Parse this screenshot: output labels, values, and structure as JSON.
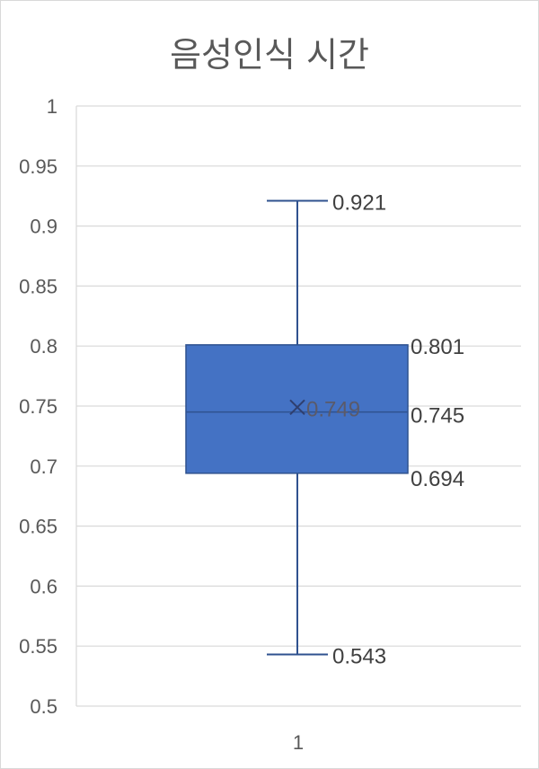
{
  "chart_data": {
    "type": "box",
    "title": "음성인식 시간",
    "categories": [
      "1"
    ],
    "box": {
      "min": 0.543,
      "q1": 0.694,
      "median": 0.745,
      "mean": 0.749,
      "q3": 0.801,
      "max": 0.921
    },
    "labels": {
      "min": "0.543",
      "q1": "0.694",
      "median": "0.745",
      "mean": "0.749",
      "q3": "0.801",
      "max": "0.921"
    },
    "ylim": [
      0.5,
      1
    ],
    "yticks": [
      "0.5",
      "0.55",
      "0.6",
      "0.65",
      "0.7",
      "0.75",
      "0.8",
      "0.85",
      "0.9",
      "0.95",
      "1"
    ],
    "grid": true,
    "colors": {
      "box": "#4472c4",
      "whisker": "#2f528f",
      "grid": "#d9d9d9"
    }
  }
}
